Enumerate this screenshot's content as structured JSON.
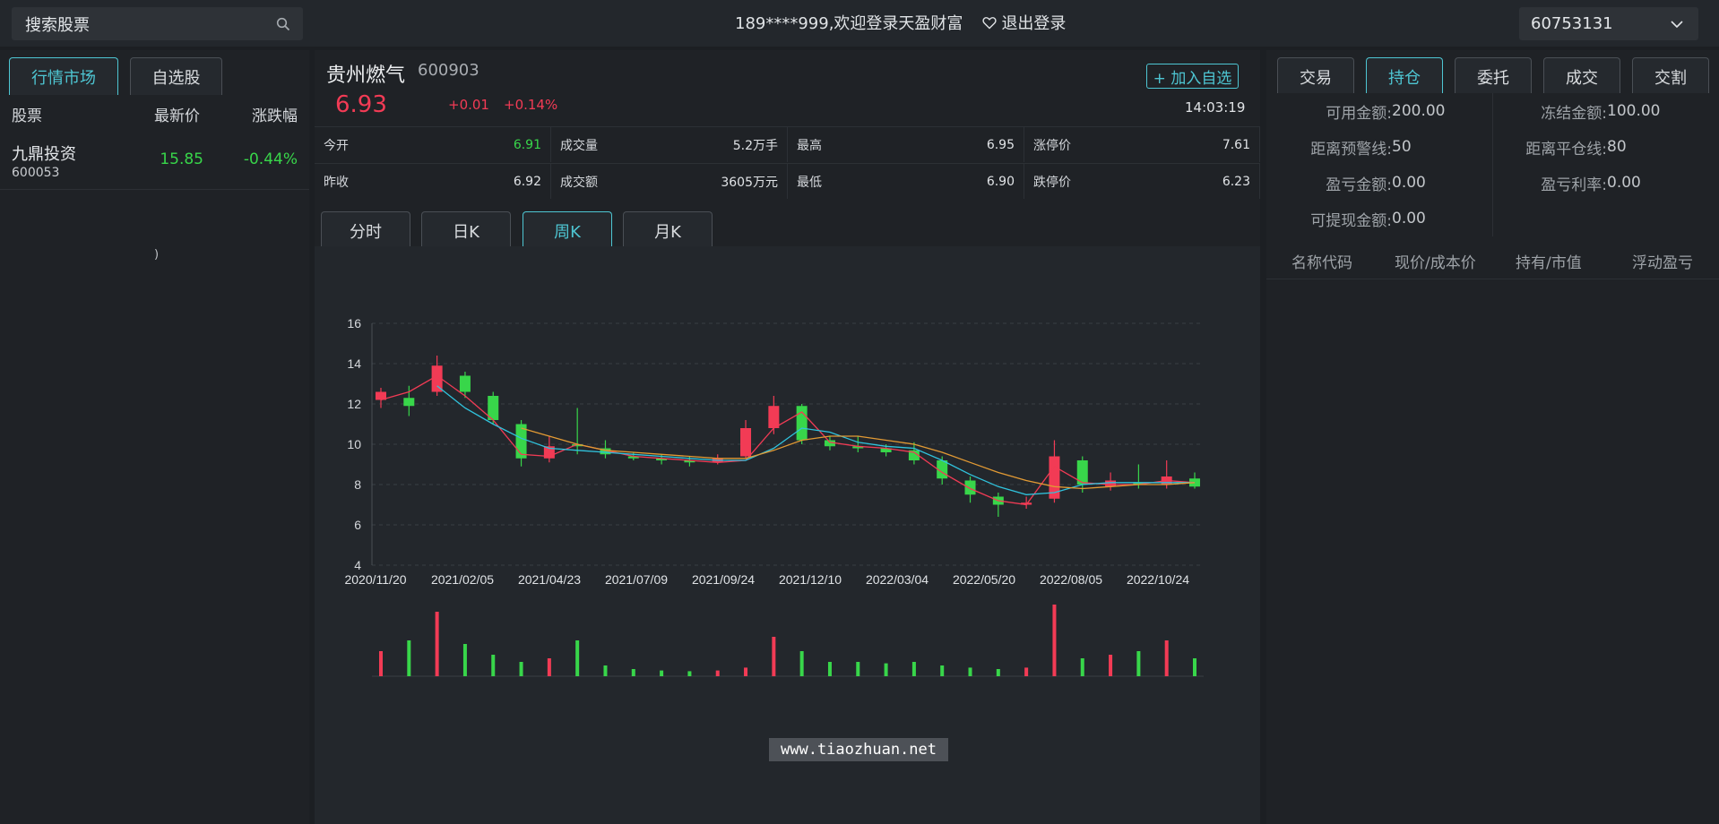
{
  "header": {
    "search_label": "搜索股票",
    "welcome_text": "189****999,欢迎登录天盈财富",
    "logout_label": "退出登录",
    "account_selected": "60753131"
  },
  "left": {
    "tabs": [
      {
        "label": "行情市场",
        "active": true
      },
      {
        "label": "自选股",
        "active": false
      }
    ],
    "columns": [
      "股票",
      "最新价",
      "涨跌幅"
    ],
    "rows": [
      {
        "name": "九鼎投资",
        "code": "600053",
        "price": "15.85",
        "change": "-0.44%"
      }
    ],
    "loading_glyph": ")"
  },
  "quote": {
    "name": "贵州燃气",
    "code": "600903",
    "last": "6.93",
    "change_abs": "+0.01",
    "change_pct": "+0.14%",
    "add_fav_label": "+ 加入自选",
    "time": "14:03:19",
    "stats": [
      {
        "label": "今开",
        "value": "6.91"
      },
      {
        "label": "成交量",
        "value": "5.2万手"
      },
      {
        "label": "最高",
        "value": "6.95"
      },
      {
        "label": "涨停价",
        "value": "7.61"
      },
      {
        "label": "昨收",
        "value": "6.92"
      },
      {
        "label": "成交额",
        "value": "3605万元"
      },
      {
        "label": "最低",
        "value": "6.90"
      },
      {
        "label": "跌停价",
        "value": "6.23"
      }
    ]
  },
  "chart_tabs": [
    {
      "label": "分时",
      "active": false
    },
    {
      "label": "日K",
      "active": false
    },
    {
      "label": "周K",
      "active": true
    },
    {
      "label": "月K",
      "active": false
    }
  ],
  "chart_data": {
    "type": "line",
    "title": "",
    "xlabel": "",
    "ylabel": "",
    "ylim": [
      4,
      16
    ],
    "yticks": [
      4,
      6,
      8,
      10,
      12,
      14,
      16
    ],
    "xticks": [
      "2020/11/20",
      "2021/02/05",
      "2021/04/23",
      "2021/07/09",
      "2021/09/24",
      "2021/12/10",
      "2022/03/04",
      "2022/05/20",
      "2022/08/05",
      "2022/10/24"
    ],
    "grid": true,
    "series": [
      {
        "color": "#f23b55",
        "values": [
          12.2,
          12.6,
          13.4,
          12.4,
          11.2,
          9.5,
          9.4,
          10.0,
          9.7,
          9.4,
          9.3,
          9.2,
          9.1,
          9.2,
          10.8,
          11.6,
          10.1,
          9.9,
          9.8,
          9.6,
          8.6,
          7.8,
          7.2,
          7.0,
          8.9,
          8.1,
          8.0,
          8.0,
          8.2,
          8.1
        ]
      },
      {
        "color": "#30c3dd",
        "values": [
          null,
          null,
          12.9,
          11.8,
          11.0,
          10.3,
          9.8,
          9.7,
          9.6,
          9.5,
          9.4,
          9.3,
          9.2,
          9.2,
          9.8,
          10.8,
          10.6,
          10.1,
          9.9,
          9.8,
          9.2,
          8.5,
          7.9,
          7.5,
          7.6,
          8.0,
          8.1,
          8.1,
          8.1,
          8.1
        ]
      },
      {
        "color": "#e29a34",
        "values": [
          null,
          null,
          null,
          null,
          null,
          10.8,
          10.4,
          10.0,
          9.7,
          9.6,
          9.5,
          9.4,
          9.3,
          9.3,
          9.7,
          10.2,
          10.4,
          10.4,
          10.2,
          10.0,
          9.6,
          9.1,
          8.6,
          8.2,
          7.9,
          7.8,
          7.9,
          8.0,
          8.0,
          8.1
        ]
      }
    ],
    "candles": [
      [
        12.2,
        12.6,
        11.8,
        12.8
      ],
      [
        12.3,
        11.9,
        11.4,
        12.9
      ],
      [
        12.6,
        13.9,
        12.4,
        14.4
      ],
      [
        13.4,
        12.6,
        12.3,
        13.6
      ],
      [
        12.4,
        11.2,
        11.0,
        12.6
      ],
      [
        11.0,
        9.3,
        8.9,
        11.2
      ],
      [
        9.3,
        9.9,
        9.1,
        10.4
      ],
      [
        10.0,
        9.9,
        9.5,
        11.8
      ],
      [
        9.8,
        9.5,
        9.3,
        10.2
      ],
      [
        9.4,
        9.3,
        9.2,
        9.6
      ],
      [
        9.3,
        9.2,
        9.0,
        9.5
      ],
      [
        9.2,
        9.1,
        8.9,
        9.4
      ],
      [
        9.1,
        9.3,
        9.0,
        9.5
      ],
      [
        9.4,
        10.8,
        9.3,
        11.2
      ],
      [
        10.8,
        11.9,
        10.5,
        12.4
      ],
      [
        11.9,
        10.2,
        10.0,
        12.0
      ],
      [
        10.2,
        9.9,
        9.7,
        10.4
      ],
      [
        9.9,
        9.8,
        9.6,
        10.4
      ],
      [
        9.8,
        9.6,
        9.4,
        10.0
      ],
      [
        9.7,
        9.2,
        9.0,
        10.1
      ],
      [
        9.2,
        8.3,
        8.0,
        9.4
      ],
      [
        8.2,
        7.5,
        7.1,
        8.4
      ],
      [
        7.4,
        7.0,
        6.4,
        7.6
      ],
      [
        7.0,
        7.1,
        6.8,
        7.4
      ],
      [
        7.3,
        9.4,
        7.1,
        10.2
      ],
      [
        9.2,
        8.0,
        7.6,
        9.4
      ],
      [
        7.9,
        8.2,
        7.7,
        8.6
      ],
      [
        8.1,
        8.0,
        7.8,
        9.0
      ],
      [
        8.0,
        8.4,
        7.8,
        9.2
      ],
      [
        8.3,
        7.9,
        7.8,
        8.6
      ]
    ],
    "volume_note": "volume bars (relative)",
    "volume": [
      0.35,
      0.5,
      0.9,
      0.45,
      0.3,
      0.2,
      0.25,
      0.5,
      0.15,
      0.1,
      0.08,
      0.07,
      0.08,
      0.12,
      0.55,
      0.35,
      0.2,
      0.2,
      0.18,
      0.2,
      0.15,
      0.12,
      0.1,
      0.12,
      1.0,
      0.25,
      0.3,
      0.35,
      0.5,
      0.25
    ]
  },
  "watermark": "www.tiaozhuan.net",
  "right": {
    "tabs": [
      {
        "label": "交易",
        "active": false
      },
      {
        "label": "持仓",
        "active": true
      },
      {
        "label": "委托",
        "active": false
      },
      {
        "label": "成交",
        "active": false
      },
      {
        "label": "交割",
        "active": false
      }
    ],
    "account": {
      "avail_label": "可用金额:",
      "avail_value": "200.00",
      "frozen_label": "冻结金额:",
      "frozen_value": "100.00",
      "warn_label": "距离预警线:",
      "warn_value": "50",
      "close_label": "距离平仓线:",
      "close_value": "80",
      "pnl_label": "盈亏金额:",
      "pnl_value": "0.00",
      "pnl_rate_label": "盈亏利率:",
      "pnl_rate_value": "0.00",
      "withdraw_label": "可提现金额:",
      "withdraw_value": "0.00"
    },
    "position_columns": [
      "名称代码",
      "现价/成本价",
      "持有/市值",
      "浮动盈亏"
    ]
  },
  "colors": {
    "accent": "#4ec6d3",
    "up": "#f23b55",
    "down": "#38d64a",
    "ma5": "#f23b55",
    "ma10": "#30c3dd",
    "ma20": "#e29a34"
  }
}
